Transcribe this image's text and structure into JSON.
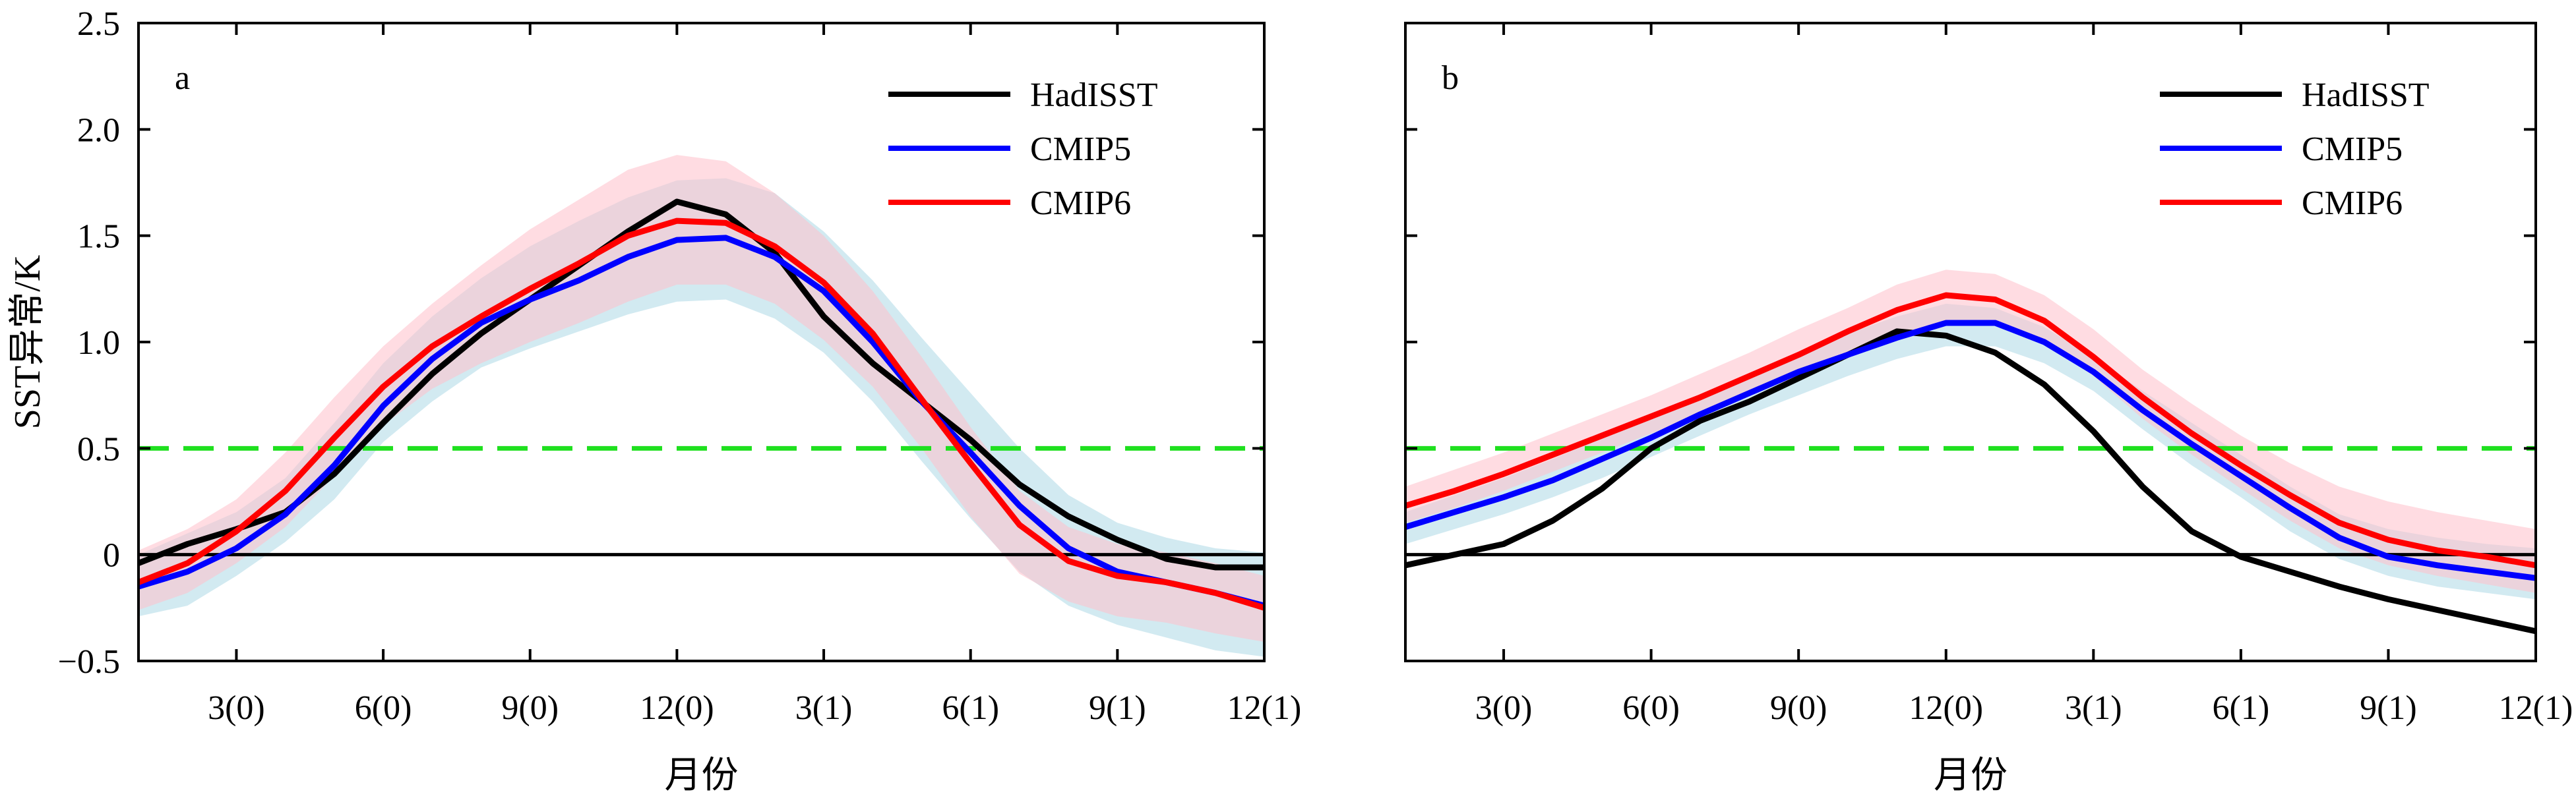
{
  "chart_data": [
    {
      "type": "line",
      "panel_label": "a",
      "ylabel": "SST异常/K",
      "xlabel": "月份",
      "xlim": [
        1,
        24
      ],
      "ylim": [
        -0.5,
        2.5
      ],
      "yticks": [
        -0.5,
        0,
        0.5,
        1.0,
        1.5,
        2.0,
        2.5
      ],
      "ytick_labels": [
        "−0.5",
        "0",
        "0.5",
        "1.0",
        "1.5",
        "2.0",
        "2.5"
      ],
      "xticks": [
        3,
        6,
        9,
        12,
        15,
        18,
        21,
        24
      ],
      "xtick_labels": [
        "3(0)",
        "6(0)",
        "9(0)",
        "12(0)",
        "3(1)",
        "6(1)",
        "9(1)",
        "12(1)"
      ],
      "x": [
        1,
        2,
        3,
        4,
        5,
        6,
        7,
        8,
        9,
        10,
        11,
        12,
        13,
        14,
        15,
        16,
        17,
        18,
        19,
        20,
        21,
        22,
        23,
        24
      ],
      "legend_placement": "top-right",
      "reference_lines": [
        {
          "y": 0,
          "color": "#000000",
          "style": "solid"
        },
        {
          "y": 0.5,
          "color": "#1fe01f",
          "style": "dashed"
        }
      ],
      "series": [
        {
          "name": "HadISST",
          "color": "#000000",
          "values": [
            -0.04,
            0.05,
            0.12,
            0.2,
            0.38,
            0.62,
            0.85,
            1.04,
            1.2,
            1.36,
            1.52,
            1.66,
            1.6,
            1.42,
            1.12,
            0.9,
            0.72,
            0.54,
            0.33,
            0.18,
            0.07,
            -0.02,
            -0.06,
            -0.06
          ]
        },
        {
          "name": "CMIP5",
          "color": "#0000ff",
          "values": [
            -0.15,
            -0.08,
            0.03,
            0.19,
            0.42,
            0.7,
            0.92,
            1.09,
            1.2,
            1.29,
            1.4,
            1.48,
            1.49,
            1.4,
            1.24,
            1.0,
            0.72,
            0.48,
            0.23,
            0.03,
            -0.08,
            -0.13,
            -0.18,
            -0.24
          ]
        },
        {
          "name": "CMIP6",
          "color": "#ff0000",
          "values": [
            -0.13,
            -0.04,
            0.11,
            0.3,
            0.55,
            0.79,
            0.98,
            1.12,
            1.25,
            1.37,
            1.5,
            1.57,
            1.56,
            1.45,
            1.28,
            1.04,
            0.73,
            0.43,
            0.14,
            -0.03,
            -0.1,
            -0.13,
            -0.18,
            -0.25
          ]
        }
      ],
      "bands": [
        {
          "color": "#add8e6",
          "upper": [
            0.0,
            0.1,
            0.2,
            0.36,
            0.62,
            0.9,
            1.12,
            1.3,
            1.45,
            1.57,
            1.68,
            1.76,
            1.77,
            1.7,
            1.52,
            1.29,
            1.02,
            0.76,
            0.5,
            0.28,
            0.15,
            0.08,
            0.03,
            0.01
          ],
          "lower": [
            -0.29,
            -0.24,
            -0.1,
            0.06,
            0.26,
            0.53,
            0.72,
            0.88,
            0.97,
            1.05,
            1.13,
            1.19,
            1.2,
            1.11,
            0.95,
            0.72,
            0.44,
            0.17,
            -0.08,
            -0.24,
            -0.33,
            -0.39,
            -0.45,
            -0.48
          ]
        },
        {
          "color": "#ffc0cb",
          "upper": [
            0.02,
            0.12,
            0.26,
            0.48,
            0.74,
            0.98,
            1.18,
            1.36,
            1.53,
            1.67,
            1.81,
            1.88,
            1.85,
            1.7,
            1.5,
            1.24,
            0.93,
            0.6,
            0.3,
            0.13,
            0.05,
            0.01,
            -0.04,
            -0.1
          ]
        },
        {
          "color": "#ffc0cb",
          "lower": [
            -0.26,
            -0.18,
            -0.04,
            0.13,
            0.37,
            0.61,
            0.78,
            0.9,
            1.0,
            1.09,
            1.19,
            1.27,
            1.27,
            1.18,
            1.01,
            0.79,
            0.5,
            0.18,
            -0.09,
            -0.22,
            -0.29,
            -0.32,
            -0.37,
            -0.41
          ]
        }
      ]
    },
    {
      "type": "line",
      "panel_label": "b",
      "ylabel": "",
      "xlabel": "月份",
      "xlim": [
        1,
        24
      ],
      "ylim": [
        -0.5,
        2.5
      ],
      "yticks": [
        -0.5,
        0,
        0.5,
        1.0,
        1.5,
        2.0,
        2.5
      ],
      "xticks": [
        3,
        6,
        9,
        12,
        15,
        18,
        21,
        24
      ],
      "xtick_labels": [
        "3(0)",
        "6(0)",
        "9(0)",
        "12(0)",
        "3(1)",
        "6(1)",
        "9(1)",
        "12(1)"
      ],
      "x": [
        1,
        2,
        3,
        4,
        5,
        6,
        7,
        8,
        9,
        10,
        11,
        12,
        13,
        14,
        15,
        16,
        17,
        18,
        19,
        20,
        21,
        22,
        23,
        24
      ],
      "legend_placement": "top-right",
      "reference_lines": [
        {
          "y": 0,
          "color": "#000000",
          "style": "solid"
        },
        {
          "y": 0.5,
          "color": "#1fe01f",
          "style": "dashed"
        }
      ],
      "series": [
        {
          "name": "HadISST",
          "color": "#000000",
          "values": [
            -0.05,
            0.0,
            0.05,
            0.16,
            0.31,
            0.5,
            0.63,
            0.72,
            0.83,
            0.94,
            1.05,
            1.03,
            0.95,
            0.8,
            0.58,
            0.32,
            0.11,
            -0.01,
            -0.08,
            -0.15,
            -0.21,
            -0.26,
            -0.31,
            -0.36
          ]
        },
        {
          "name": "CMIP5",
          "color": "#0000ff",
          "values": [
            0.13,
            0.2,
            0.27,
            0.35,
            0.45,
            0.55,
            0.66,
            0.76,
            0.86,
            0.94,
            1.02,
            1.09,
            1.09,
            1.0,
            0.86,
            0.68,
            0.52,
            0.37,
            0.22,
            0.08,
            -0.01,
            -0.05,
            -0.08,
            -0.11
          ]
        },
        {
          "name": "CMIP6",
          "color": "#ff0000",
          "values": [
            0.23,
            0.3,
            0.38,
            0.47,
            0.56,
            0.65,
            0.74,
            0.84,
            0.94,
            1.05,
            1.15,
            1.22,
            1.2,
            1.1,
            0.93,
            0.74,
            0.57,
            0.42,
            0.28,
            0.15,
            0.07,
            0.02,
            -0.01,
            -0.05
          ]
        }
      ],
      "bands": [
        {
          "color": "#add8e6",
          "upper": [
            0.2,
            0.28,
            0.36,
            0.45,
            0.55,
            0.65,
            0.75,
            0.85,
            0.95,
            1.04,
            1.12,
            1.18,
            1.16,
            1.07,
            0.93,
            0.77,
            0.62,
            0.47,
            0.32,
            0.19,
            0.12,
            0.08,
            0.05,
            0.03
          ]
        },
        {
          "color": "#add8e6",
          "lower": [
            0.05,
            0.12,
            0.19,
            0.27,
            0.36,
            0.46,
            0.56,
            0.66,
            0.75,
            0.84,
            0.92,
            0.98,
            0.98,
            0.9,
            0.77,
            0.59,
            0.42,
            0.27,
            0.11,
            -0.02,
            -0.1,
            -0.15,
            -0.18,
            -0.21
          ]
        },
        {
          "color": "#ffc0cb",
          "upper": [
            0.32,
            0.4,
            0.48,
            0.57,
            0.66,
            0.75,
            0.85,
            0.95,
            1.06,
            1.16,
            1.27,
            1.34,
            1.32,
            1.22,
            1.06,
            0.87,
            0.71,
            0.56,
            0.43,
            0.32,
            0.25,
            0.2,
            0.16,
            0.12
          ]
        },
        {
          "color": "#ffc0cb",
          "lower": [
            0.15,
            0.22,
            0.3,
            0.39,
            0.48,
            0.57,
            0.66,
            0.75,
            0.84,
            0.94,
            1.03,
            1.1,
            1.1,
            1.0,
            0.84,
            0.64,
            0.47,
            0.31,
            0.16,
            0.03,
            -0.05,
            -0.1,
            -0.14,
            -0.18
          ]
        }
      ]
    }
  ]
}
